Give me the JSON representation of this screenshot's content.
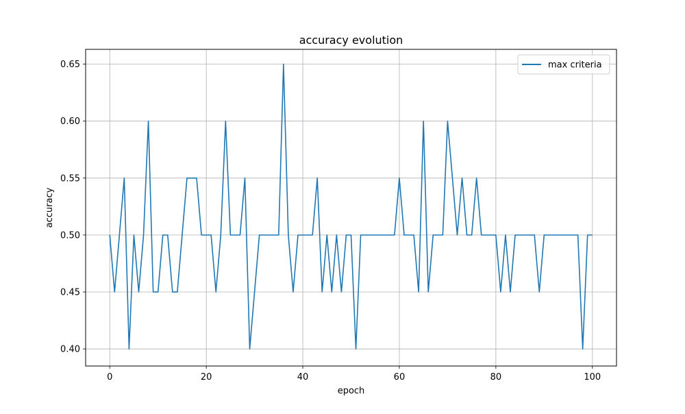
{
  "chart_data": {
    "type": "line",
    "title": "accuracy evolution",
    "xlabel": "epoch",
    "ylabel": "accuracy",
    "xlim": [
      -5,
      105
    ],
    "ylim": [
      0.385,
      0.663
    ],
    "xticks": [
      0,
      20,
      40,
      60,
      80,
      100
    ],
    "xtick_labels": [
      "0",
      "20",
      "40",
      "60",
      "80",
      "100"
    ],
    "yticks": [
      0.4,
      0.45,
      0.5,
      0.55,
      0.6,
      0.65
    ],
    "ytick_labels": [
      "0.40",
      "0.45",
      "0.50",
      "0.55",
      "0.60",
      "0.65"
    ],
    "grid": true,
    "legend_position": "top-right",
    "series": [
      {
        "name": "max criteria",
        "color": "#1f77b4",
        "x": [
          0,
          1,
          2,
          3,
          4,
          5,
          6,
          7,
          8,
          9,
          10,
          11,
          12,
          13,
          14,
          15,
          16,
          17,
          18,
          19,
          20,
          21,
          22,
          23,
          24,
          25,
          26,
          27,
          28,
          29,
          30,
          31,
          32,
          33,
          34,
          35,
          36,
          37,
          38,
          39,
          40,
          41,
          42,
          43,
          44,
          45,
          46,
          47,
          48,
          49,
          50,
          51,
          52,
          53,
          54,
          55,
          56,
          57,
          58,
          59,
          60,
          61,
          62,
          63,
          64,
          65,
          66,
          67,
          68,
          69,
          70,
          71,
          72,
          73,
          74,
          75,
          76,
          77,
          78,
          79,
          80,
          81,
          82,
          83,
          84,
          85,
          86,
          87,
          88,
          89,
          90,
          91,
          92,
          93,
          94,
          95,
          96,
          97,
          98,
          99,
          100
        ],
        "values": [
          0.5,
          0.45,
          0.5,
          0.55,
          0.4,
          0.5,
          0.45,
          0.5,
          0.6,
          0.45,
          0.45,
          0.5,
          0.5,
          0.45,
          0.45,
          0.5,
          0.55,
          0.55,
          0.55,
          0.5,
          0.5,
          0.5,
          0.45,
          0.5,
          0.6,
          0.5,
          0.5,
          0.5,
          0.55,
          0.4,
          0.45,
          0.5,
          0.5,
          0.5,
          0.5,
          0.5,
          0.65,
          0.5,
          0.45,
          0.5,
          0.5,
          0.5,
          0.5,
          0.55,
          0.45,
          0.5,
          0.45,
          0.5,
          0.45,
          0.5,
          0.5,
          0.4,
          0.5,
          0.5,
          0.5,
          0.5,
          0.5,
          0.5,
          0.5,
          0.5,
          0.55,
          0.5,
          0.5,
          0.5,
          0.45,
          0.6,
          0.45,
          0.5,
          0.5,
          0.5,
          0.6,
          0.55,
          0.5,
          0.55,
          0.5,
          0.5,
          0.55,
          0.5,
          0.5,
          0.5,
          0.5,
          0.45,
          0.5,
          0.45,
          0.5,
          0.5,
          0.5,
          0.5,
          0.5,
          0.45,
          0.5,
          0.5,
          0.5,
          0.5,
          0.5,
          0.5,
          0.5,
          0.5,
          0.4,
          0.5,
          0.5
        ]
      }
    ]
  }
}
